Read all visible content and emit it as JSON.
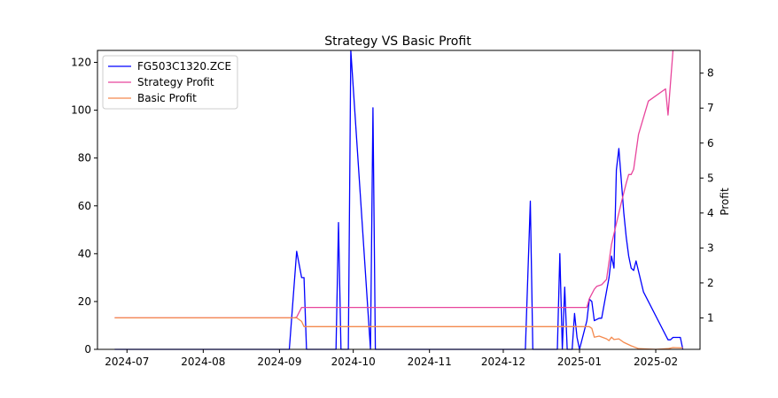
{
  "chart_data": {
    "type": "line",
    "title": "Strategy VS Basic Profit",
    "xlabel": "",
    "ylabel_left": "",
    "ylabel_right": "Profit",
    "x_tick_labels": [
      "2024-07",
      "2024-08",
      "2024-09",
      "2024-10",
      "2024-11",
      "2024-12",
      "2025-01",
      "2025-02"
    ],
    "y_left_ticks": [
      "0",
      "20",
      "40",
      "60",
      "80",
      "100",
      "120"
    ],
    "y_right_ticks": [
      "1",
      "2",
      "3",
      "4",
      "5",
      "6",
      "7",
      "8"
    ],
    "y_left_range": [
      0,
      125
    ],
    "y_right_range": [
      0.1,
      8.65
    ],
    "x_range": [
      "2024-06-19",
      "2025-02-19"
    ],
    "grid": false,
    "legend_position": "upper-left",
    "series": [
      {
        "name": "FG503C1320.ZCE",
        "axis": "left",
        "color": "#0000ff",
        "points": [
          [
            "2024-06-26",
            0
          ],
          [
            "2024-09-05",
            0
          ],
          [
            "2024-09-08",
            41
          ],
          [
            "2024-09-10",
            30
          ],
          [
            "2024-09-11",
            30
          ],
          [
            "2024-09-12",
            0
          ],
          [
            "2024-09-24",
            0
          ],
          [
            "2024-09-25",
            53
          ],
          [
            "2024-09-26",
            0
          ],
          [
            "2024-09-29",
            0
          ],
          [
            "2024-09-30",
            125
          ],
          [
            "2024-10-08",
            0
          ],
          [
            "2024-10-09",
            101
          ],
          [
            "2024-10-10",
            0
          ],
          [
            "2024-12-10",
            0
          ],
          [
            "2024-12-12",
            62
          ],
          [
            "2024-12-13",
            0
          ],
          [
            "2024-12-23",
            0
          ],
          [
            "2024-12-24",
            40
          ],
          [
            "2024-12-25",
            0
          ],
          [
            "2024-12-26",
            26
          ],
          [
            "2024-12-27",
            0
          ],
          [
            "2024-12-29",
            0
          ],
          [
            "2024-12-30",
            15
          ],
          [
            "2024-12-31",
            5
          ],
          [
            "2025-01-01",
            0
          ],
          [
            "2025-01-04",
            12
          ],
          [
            "2025-01-05",
            21
          ],
          [
            "2025-01-06",
            20
          ],
          [
            "2025-01-07",
            12
          ],
          [
            "2025-01-09",
            13
          ],
          [
            "2025-01-10",
            13
          ],
          [
            "2025-01-13",
            30
          ],
          [
            "2025-01-14",
            39
          ],
          [
            "2025-01-15",
            34
          ],
          [
            "2025-01-16",
            75
          ],
          [
            "2025-01-17",
            84
          ],
          [
            "2025-01-19",
            57
          ],
          [
            "2025-01-20",
            47
          ],
          [
            "2025-01-21",
            39
          ],
          [
            "2025-01-22",
            34
          ],
          [
            "2025-01-23",
            33
          ],
          [
            "2025-01-24",
            37
          ],
          [
            "2025-01-27",
            24
          ],
          [
            "2025-02-03",
            10
          ],
          [
            "2025-02-06",
            4
          ],
          [
            "2025-02-07",
            4
          ],
          [
            "2025-02-08",
            5
          ],
          [
            "2025-02-11",
            5
          ],
          [
            "2025-02-12",
            0
          ]
        ]
      },
      {
        "name": "Strategy Profit",
        "axis": "right",
        "color": "#e8459c",
        "points": [
          [
            "2024-06-26",
            1.0
          ],
          [
            "2024-09-07",
            1.0
          ],
          [
            "2024-09-08",
            1.02
          ],
          [
            "2024-09-10",
            1.3
          ],
          [
            "2025-01-04",
            1.3
          ],
          [
            "2025-01-05",
            1.55
          ],
          [
            "2025-01-07",
            1.82
          ],
          [
            "2025-01-08",
            1.9
          ],
          [
            "2025-01-10",
            1.95
          ],
          [
            "2025-01-12",
            2.1
          ],
          [
            "2025-01-14",
            3.1
          ],
          [
            "2025-01-16",
            3.7
          ],
          [
            "2025-01-18",
            4.3
          ],
          [
            "2025-01-20",
            4.85
          ],
          [
            "2025-01-21",
            5.1
          ],
          [
            "2025-01-22",
            5.1
          ],
          [
            "2025-01-23",
            5.25
          ],
          [
            "2025-01-25",
            6.25
          ],
          [
            "2025-01-29",
            7.2
          ],
          [
            "2025-02-05",
            7.55
          ],
          [
            "2025-02-06",
            6.8
          ],
          [
            "2025-02-08",
            8.65
          ]
        ]
      },
      {
        "name": "Basic Profit",
        "axis": "right",
        "color": "#f4894d",
        "points": [
          [
            "2024-06-26",
            1.0
          ],
          [
            "2024-09-08",
            1.0
          ],
          [
            "2024-09-10",
            0.9
          ],
          [
            "2024-09-11",
            0.75
          ],
          [
            "2025-01-05",
            0.75
          ],
          [
            "2025-01-06",
            0.7
          ],
          [
            "2025-01-07",
            0.45
          ],
          [
            "2025-01-09",
            0.48
          ],
          [
            "2025-01-12",
            0.4
          ],
          [
            "2025-01-13",
            0.35
          ],
          [
            "2025-01-14",
            0.45
          ],
          [
            "2025-01-15",
            0.38
          ],
          [
            "2025-01-17",
            0.4
          ],
          [
            "2025-01-19",
            0.3
          ],
          [
            "2025-01-22",
            0.2
          ],
          [
            "2025-01-25",
            0.12
          ],
          [
            "2025-02-01",
            0.1
          ],
          [
            "2025-02-06",
            0.12
          ],
          [
            "2025-02-08",
            0.15
          ],
          [
            "2025-02-12",
            0.14
          ]
        ]
      }
    ]
  }
}
